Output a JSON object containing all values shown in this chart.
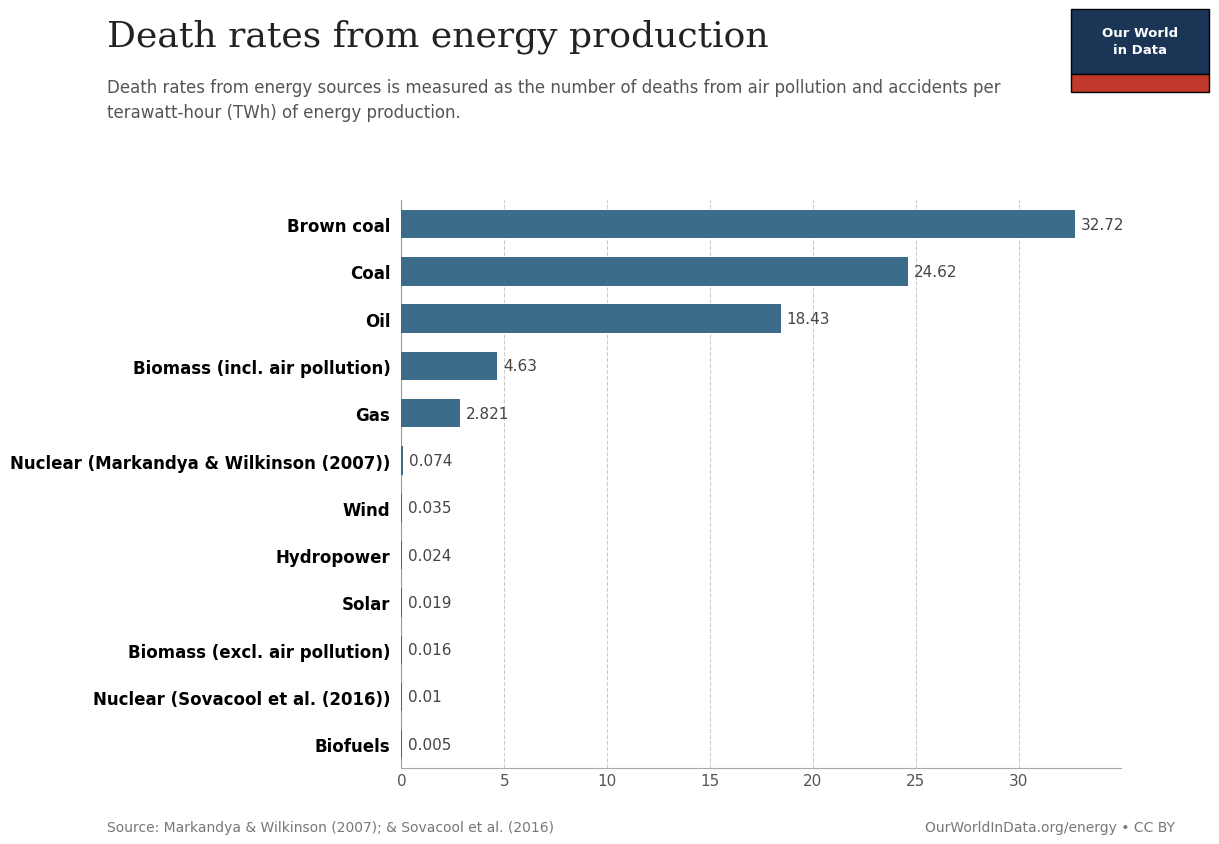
{
  "title": "Death rates from energy production",
  "subtitle": "Death rates from energy sources is measured as the number of deaths from air pollution and accidents per\nterawatt-hour (TWh) of energy production.",
  "categories": [
    "Brown coal",
    "Coal",
    "Oil",
    "Biomass (incl. air pollution)",
    "Gas",
    "Nuclear (Markandya & Wilkinson (2007))",
    "Wind",
    "Hydropower",
    "Solar",
    "Biomass (excl. air pollution)",
    "Nuclear (Sovacool et al. (2016))",
    "Biofuels"
  ],
  "values": [
    32.72,
    24.62,
    18.43,
    4.63,
    2.821,
    0.074,
    0.035,
    0.024,
    0.019,
    0.016,
    0.01,
    0.005
  ],
  "bar_color": "#3d6b8a",
  "background_color": "#ffffff",
  "source_left": "Source: Markandya & Wilkinson (2007); & Sovacool et al. (2016)",
  "source_right": "OurWorldInData.org/energy • CC BY",
  "xlim": [
    0,
    35
  ],
  "xticks": [
    0,
    5,
    10,
    15,
    20,
    25,
    30
  ],
  "title_fontsize": 26,
  "subtitle_fontsize": 12,
  "label_fontsize": 12,
  "value_fontsize": 11,
  "tick_fontsize": 11,
  "logo_bg": "#1a3556",
  "logo_red": "#c0392b",
  "logo_text": "Our World\nin Data"
}
